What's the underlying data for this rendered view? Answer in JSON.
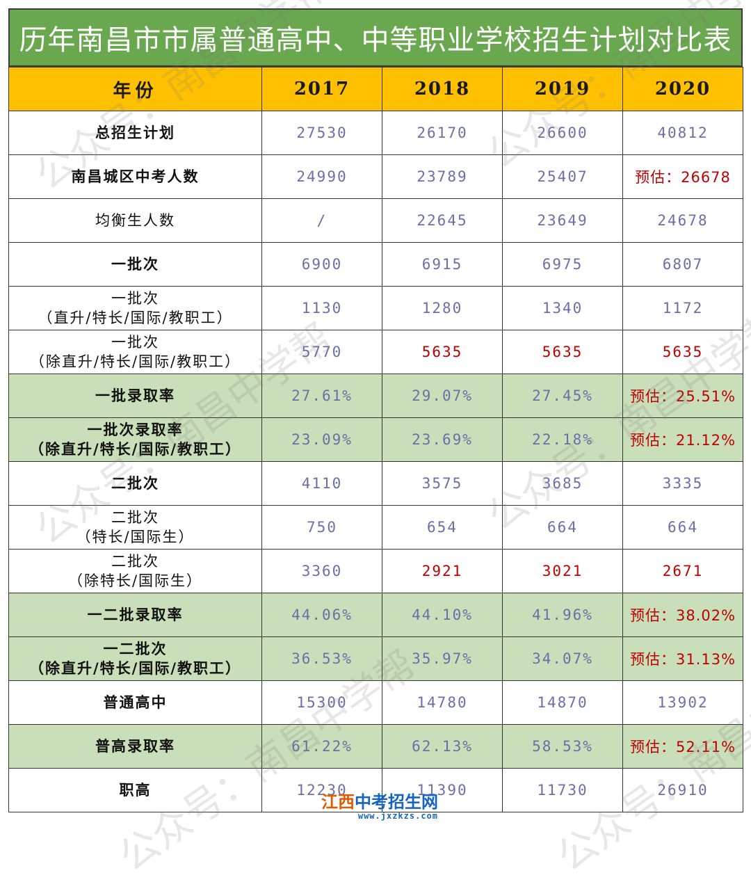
{
  "title": "历年南昌市市属普通高中、中等职业学校招生计划对比表",
  "header": {
    "label": "年份",
    "years": [
      "2017",
      "2018",
      "2019",
      "2020"
    ]
  },
  "rows": [
    {
      "label": "总招生计划",
      "values": [
        "27530",
        "26170",
        "26600",
        "40812"
      ]
    },
    {
      "label": "南昌城区中考人数",
      "values": [
        "24990",
        "23789",
        "25407",
        "预估：26678"
      ]
    },
    {
      "label": "均衡生人数",
      "values": [
        "/",
        "22645",
        "23649",
        "24678"
      ]
    },
    {
      "label": "一批次",
      "values": [
        "6900",
        "6915",
        "6975",
        "6807"
      ]
    },
    {
      "label": "一批次\n（直升/特长/国际/教职工）",
      "values": [
        "1130",
        "1280",
        "1340",
        "1172"
      ]
    },
    {
      "label": "一批次\n（除直升/特长/国际/教职工）",
      "values": [
        "5770",
        "5635",
        "5635",
        "5635"
      ]
    },
    {
      "label": "一批录取率",
      "values": [
        "27.61%",
        "29.07%",
        "27.45%",
        "预估：25.51%"
      ]
    },
    {
      "label": "一批次录取率\n（除直升/特长/国际/教职工）",
      "values": [
        "23.09%",
        "23.69%",
        "22.18%",
        "预估：21.12%"
      ]
    },
    {
      "label": "二批次",
      "values": [
        "4110",
        "3575",
        "3685",
        "3335"
      ]
    },
    {
      "label": "二批次\n（特长/国际生）",
      "values": [
        "750",
        "654",
        "664",
        "664"
      ]
    },
    {
      "label": "二批次\n（除特长/国际生）",
      "values": [
        "3360",
        "2921",
        "3021",
        "2671"
      ]
    },
    {
      "label": "一二批录取率",
      "values": [
        "44.06%",
        "44.10%",
        "41.96%",
        "预估：38.02%"
      ]
    },
    {
      "label": "一二批次\n（除直升/特长/国际/教职工）",
      "values": [
        "36.53%",
        "35.97%",
        "34.07%",
        "预估：31.13%"
      ]
    },
    {
      "label": "普通高中",
      "values": [
        "15300",
        "14780",
        "14870",
        "13902"
      ]
    },
    {
      "label": "普高录取率",
      "values": [
        "61.22%",
        "62.13%",
        "58.53%",
        "预估：52.11%"
      ]
    },
    {
      "label": "职高",
      "values": [
        "12230",
        "11390",
        "11730",
        "26910"
      ]
    }
  ],
  "watermark": "公众号：南昌中学帮",
  "logo": {
    "brand_a": "江西",
    "brand_b": "中考招生网",
    "url": "www.jxzkzs.com"
  },
  "colors": {
    "title_bg": "#6aa84f",
    "header_bg": "#ffc000",
    "highlight_row": "#c9dfb9",
    "value_text": "#6b6fa8",
    "emphasis_text": "#c00000"
  }
}
